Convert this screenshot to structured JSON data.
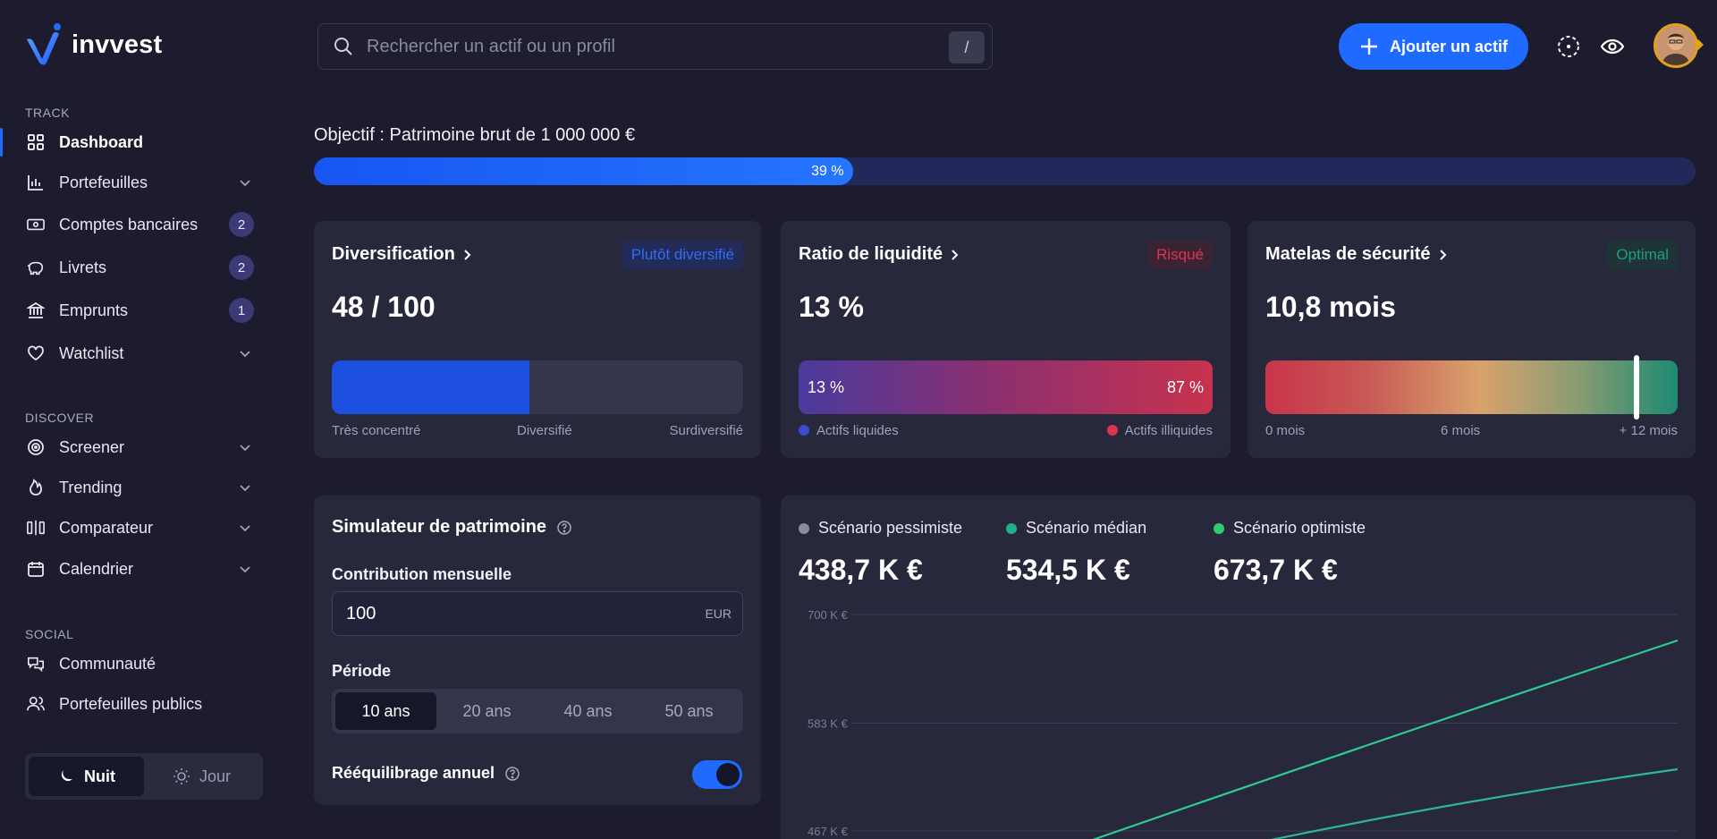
{
  "brand": {
    "name": "invvest"
  },
  "sidebar": {
    "sections": {
      "track": "TRACK",
      "discover": "DISCOVER",
      "social": "SOCIAL"
    },
    "items": [
      {
        "label": "Dashboard",
        "icon": "grid-icon",
        "active": true
      },
      {
        "label": "Portefeuilles",
        "icon": "bar-chart-icon",
        "chevron": true
      },
      {
        "label": "Comptes bancaires",
        "icon": "bank-card-icon",
        "badge": "2"
      },
      {
        "label": "Livrets",
        "icon": "piggy-bank-icon",
        "badge": "2"
      },
      {
        "label": "Emprunts",
        "icon": "bank-building-icon",
        "badge": "1"
      },
      {
        "label": "Watchlist",
        "icon": "heart-icon",
        "chevron": true
      },
      {
        "label": "Screener",
        "icon": "target-icon",
        "chevron": true
      },
      {
        "label": "Trending",
        "icon": "flame-icon",
        "chevron": true
      },
      {
        "label": "Comparateur",
        "icon": "compare-icon",
        "chevron": true
      },
      {
        "label": "Calendrier",
        "icon": "calendar-icon",
        "chevron": true
      },
      {
        "label": "Communauté",
        "icon": "chat-icon"
      },
      {
        "label": "Portefeuilles publics",
        "icon": "users-icon"
      }
    ],
    "theme": {
      "night": "Nuit",
      "day": "Jour",
      "selected": "Nuit"
    }
  },
  "topbar": {
    "search_placeholder": "Rechercher un actif ou un profil",
    "search_shortcut": "/",
    "add_button": "Ajouter un actif"
  },
  "goal": {
    "label": "Objectif : Patrimoine brut de 1 000 000 €",
    "progress_label": "39 %",
    "progress": 0.39
  },
  "cards": {
    "diversification": {
      "title": "Diversification",
      "badge": "Plutôt diversifié",
      "value": "48 / 100",
      "score": 48,
      "legend": [
        "Très concentré",
        "Diversifié",
        "Surdiversifié"
      ]
    },
    "liquidity": {
      "title": "Ratio de liquidité",
      "badge": "Risqué",
      "value": "13 %",
      "left_label": "13 %",
      "right_label": "87 %",
      "liquid_share": 0.13,
      "legend_left": "Actifs liquides",
      "legend_right": "Actifs illiquides"
    },
    "safety": {
      "title": "Matelas de sécurité",
      "badge": "Optimal",
      "value": "10,8 mois",
      "months": 10.8,
      "legend": [
        "0 mois",
        "6 mois",
        "+ 12 mois"
      ]
    }
  },
  "simulator": {
    "title": "Simulateur de patrimoine",
    "contribution_label": "Contribution mensuelle",
    "contribution_value": "100",
    "contribution_unit": "EUR",
    "period_label": "Période",
    "periods": [
      "10 ans",
      "20 ans",
      "40 ans",
      "50 ans"
    ],
    "selected_period": "10 ans",
    "rebalance_label": "Rééquilibrage annuel",
    "rebalance_on": true
  },
  "scenarios": [
    {
      "label": "Scénario pessimiste",
      "value": "438,7 K €",
      "color": "#8a8a9e"
    },
    {
      "label": "Scénario médian",
      "value": "534,5 K €",
      "color": "#1fb08a"
    },
    {
      "label": "Scénario optimiste",
      "value": "673,7 K €",
      "color": "#2ecc71"
    }
  ],
  "chart_data": {
    "type": "line",
    "y_ticks": [
      "700 K €",
      "583 K €",
      "467 K €"
    ],
    "y_tick_values": [
      700,
      583,
      467
    ],
    "x": [
      0,
      0.25,
      0.5,
      0.75,
      1
    ],
    "series": [
      {
        "name": "Scénario optimiste",
        "color": "#2ecc8f",
        "values": [
          440,
          500,
          560,
          620,
          673.7
        ]
      },
      {
        "name": "Scénario médian",
        "color": "#2cb891",
        "values": [
          440,
          465,
          490,
          512,
          534.5
        ]
      }
    ]
  }
}
